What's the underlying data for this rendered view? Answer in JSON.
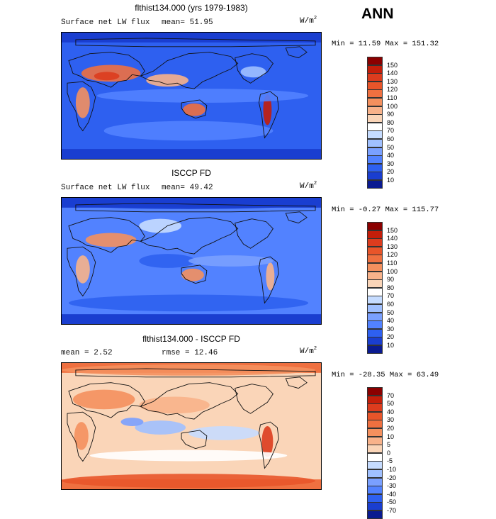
{
  "header": {
    "season": "ANN"
  },
  "panels": [
    {
      "title": "flthist134.000 (yrs 1979-1983)",
      "left_label": "Surface net LW flux",
      "mid_label": "mean=  51.95",
      "units_base": "W/m",
      "units_exp": "2",
      "minmax": "Min =  11.59 Max = 151.32",
      "colorbar_levels": [
        "150",
        "140",
        "130",
        "120",
        "110",
        "100",
        "90",
        "80",
        "70",
        "60",
        "50",
        "40",
        "30",
        "20",
        "10"
      ],
      "colorbar_colors": [
        "#8b0000",
        "#c41e0a",
        "#dc3c1e",
        "#e8552a",
        "#ef7040",
        "#f4905e",
        "#f8b28a",
        "#fad5b8",
        "#ffffff",
        "#c6dcff",
        "#a0c0ff",
        "#7aa0ff",
        "#5282ff",
        "#2e60f0",
        "#1a3ed0",
        "#0a1a90"
      ],
      "map_kind": "model"
    },
    {
      "title": "ISCCP FD",
      "left_label": "Surface net LW flux",
      "mid_label": "mean=  49.42",
      "units_base": "W/m",
      "units_exp": "2",
      "minmax": "Min =  -0.27 Max = 115.77",
      "colorbar_levels": [
        "150",
        "140",
        "130",
        "120",
        "110",
        "100",
        "90",
        "80",
        "70",
        "60",
        "50",
        "40",
        "30",
        "20",
        "10"
      ],
      "colorbar_colors": [
        "#8b0000",
        "#c41e0a",
        "#dc3c1e",
        "#e8552a",
        "#ef7040",
        "#f4905e",
        "#f8b28a",
        "#fad5b8",
        "#ffffff",
        "#c6dcff",
        "#a0c0ff",
        "#7aa0ff",
        "#5282ff",
        "#2e60f0",
        "#1a3ed0",
        "#0a1a90"
      ],
      "map_kind": "obs"
    },
    {
      "title": "flthist134.000 - ISCCP FD",
      "left_label": "mean =   2.52",
      "mid_label": "rmse =  12.46",
      "units_base": "W/m",
      "units_exp": "2",
      "minmax": "Min = -28.35 Max =  63.49",
      "colorbar_levels": [
        "70",
        "50",
        "40",
        "30",
        "20",
        "10",
        "5",
        "0",
        "-5",
        "-10",
        "-20",
        "-30",
        "-40",
        "-50",
        "-70"
      ],
      "colorbar_colors": [
        "#8b0000",
        "#c41e0a",
        "#dc3c1e",
        "#e8552a",
        "#ef7040",
        "#f4905e",
        "#f8b28a",
        "#fad5b8",
        "#ffffff",
        "#c6dcff",
        "#a0c0ff",
        "#7aa0ff",
        "#5282ff",
        "#2e60f0",
        "#1a3ed0",
        "#0a1a90"
      ],
      "map_kind": "diff"
    }
  ]
}
